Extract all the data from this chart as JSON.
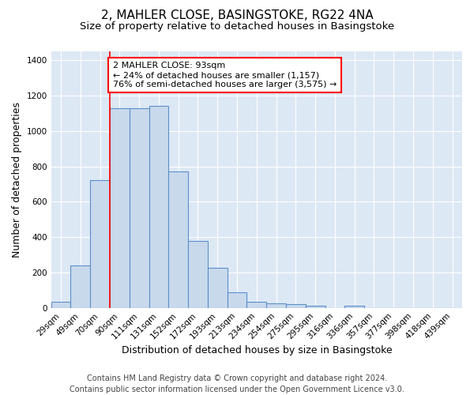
{
  "title1": "2, MAHLER CLOSE, BASINGSTOKE, RG22 4NA",
  "title2": "Size of property relative to detached houses in Basingstoke",
  "xlabel": "Distribution of detached houses by size in Basingstoke",
  "ylabel": "Number of detached properties",
  "categories": [
    "29sqm",
    "49sqm",
    "70sqm",
    "90sqm",
    "111sqm",
    "131sqm",
    "152sqm",
    "172sqm",
    "193sqm",
    "213sqm",
    "234sqm",
    "254sqm",
    "275sqm",
    "295sqm",
    "316sqm",
    "336sqm",
    "357sqm",
    "377sqm",
    "398sqm",
    "418sqm",
    "439sqm"
  ],
  "values": [
    35,
    240,
    720,
    1130,
    1130,
    1140,
    770,
    380,
    225,
    90,
    35,
    27,
    22,
    14,
    0,
    14,
    0,
    0,
    0,
    0,
    0
  ],
  "bar_color": "#c8d9ec",
  "bar_edge_color": "#5b8fc9",
  "red_line_bin_index": 3,
  "annotation_text": "2 MAHLER CLOSE: 93sqm\n← 24% of detached houses are smaller (1,157)\n76% of semi-detached houses are larger (3,575) →",
  "annotation_box_color": "white",
  "annotation_box_edge": "red",
  "footer": "Contains HM Land Registry data © Crown copyright and database right 2024.\nContains public sector information licensed under the Open Government Licence v3.0.",
  "ylim": [
    0,
    1450
  ],
  "axes_background_color": "#dde8f5",
  "figure_background_color": "#ffffff",
  "grid_color": "#ffffff",
  "title1_fontsize": 11,
  "title2_fontsize": 9.5,
  "xlabel_fontsize": 9,
  "ylabel_fontsize": 9,
  "tick_fontsize": 7.5,
  "footer_fontsize": 7,
  "annotation_fontsize": 8
}
